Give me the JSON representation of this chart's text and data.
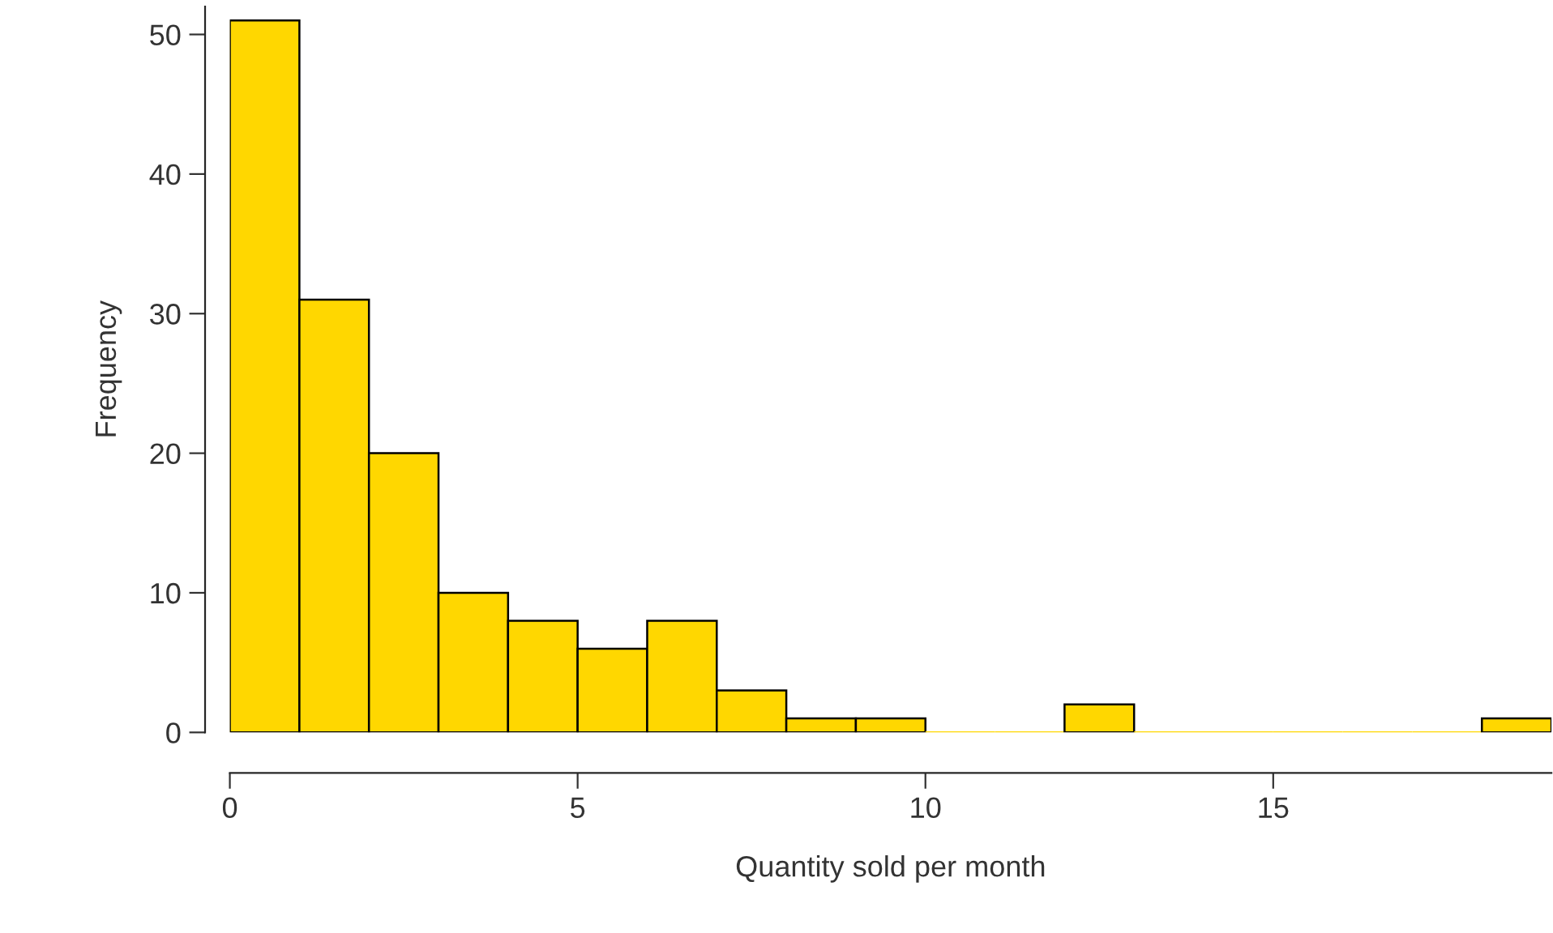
{
  "chart_data": {
    "type": "histogram",
    "xlabel": "Quantity sold per month",
    "ylabel": "Frequency",
    "bins": [
      0,
      1,
      2,
      3,
      4,
      5,
      6,
      7,
      8,
      9,
      10,
      11,
      12,
      13,
      14,
      15,
      16,
      17,
      18,
      19
    ],
    "values": [
      51,
      31,
      20,
      10,
      8,
      6,
      8,
      3,
      1,
      1,
      0,
      0,
      2,
      0,
      0,
      0,
      0,
      0,
      1
    ],
    "color": "#ffd700",
    "xlim": [
      0,
      19
    ],
    "xticks": [
      0,
      5,
      10,
      15
    ],
    "ylim": [
      0,
      52
    ],
    "yticks": [
      0,
      10,
      20,
      30,
      40,
      50
    ],
    "grid": false
  }
}
